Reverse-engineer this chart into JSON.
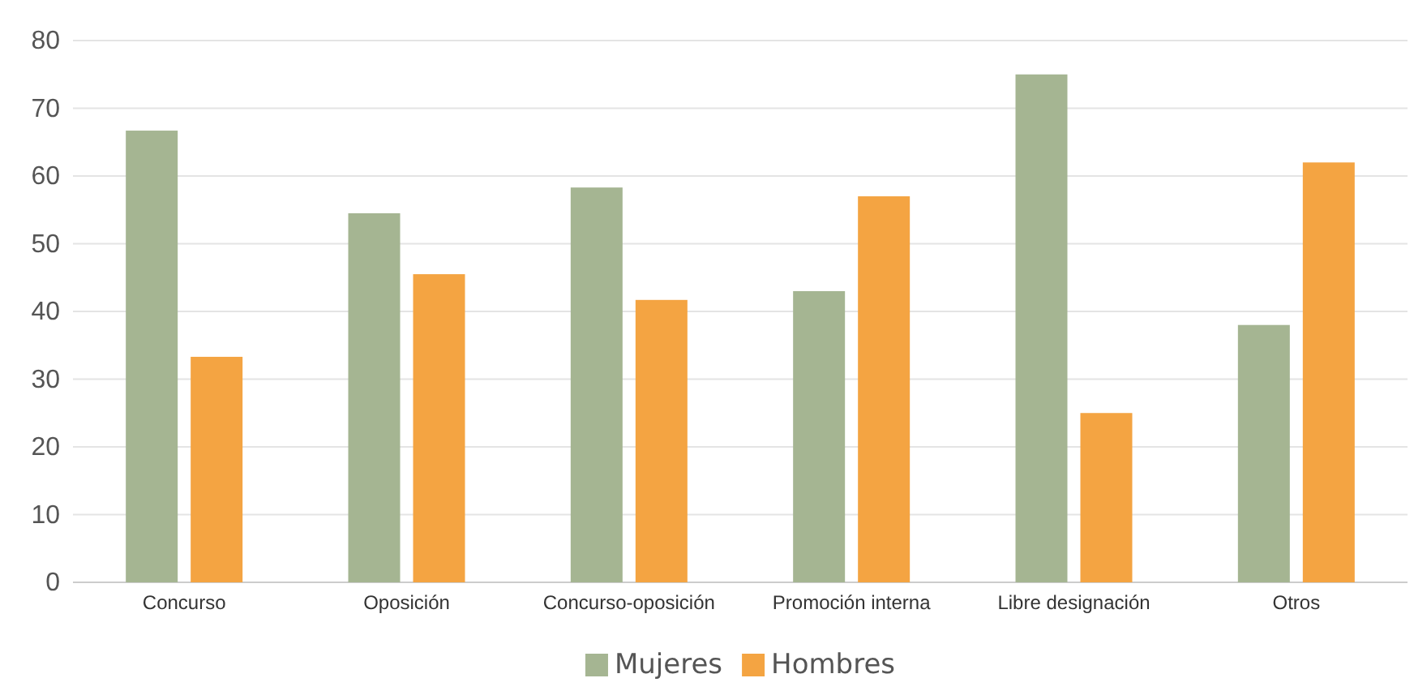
{
  "chart_data": {
    "type": "bar",
    "categories": [
      "Concurso",
      "Oposición",
      "Concurso-oposición",
      "Promoción interna",
      "Libre designación",
      "Otros"
    ],
    "series": [
      {
        "name": "Mujeres",
        "color": "#a5b592",
        "values": [
          66.7,
          54.5,
          58.3,
          43,
          75,
          38
        ]
      },
      {
        "name": "Hombres",
        "color": "#f4a442",
        "values": [
          33.3,
          45.5,
          41.7,
          57,
          25,
          62
        ]
      }
    ],
    "ylim": [
      0,
      80
    ],
    "yticks": [
      0,
      10,
      20,
      30,
      40,
      50,
      60,
      70,
      80
    ],
    "grid": "y",
    "legend": "bottom"
  }
}
